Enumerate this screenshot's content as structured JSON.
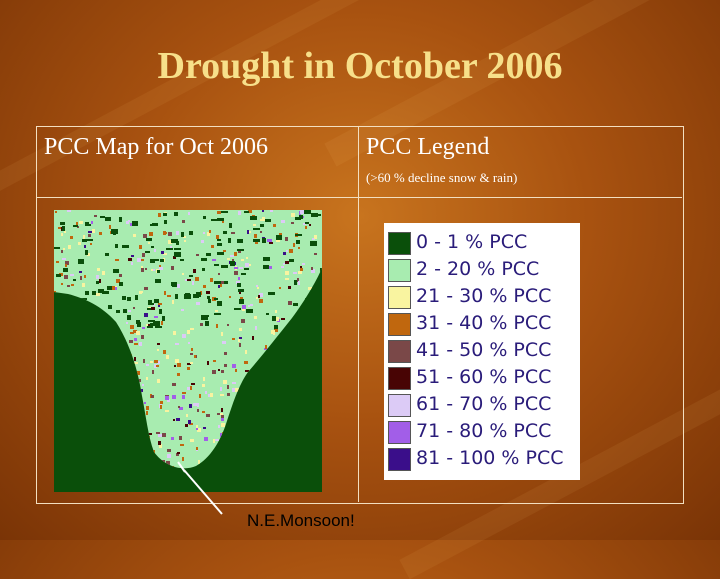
{
  "title": "Drought in October 2006",
  "map_header": "PCC Map for Oct 2006",
  "legend_header": "PCC Legend",
  "legend_subtitle": "(>60 % decline snow & rain)",
  "legend": [
    {
      "label": "0 - 1 % PCC",
      "color": "#0a4f0a"
    },
    {
      "label": "2 - 20 % PCC",
      "color": "#a8ecb0"
    },
    {
      "label": "21 - 30 % PCC",
      "color": "#f9f4a0"
    },
    {
      "label": "31 - 40 % PCC",
      "color": "#c0670e"
    },
    {
      "label": "41 - 50 % PCC",
      "color": "#7a4848"
    },
    {
      "label": "51 - 60 % PCC",
      "color": "#480404"
    },
    {
      "label": "61 - 70 % PCC",
      "color": "#dccbf6"
    },
    {
      "label": "71 - 80 % PCC",
      "color": "#a25ee8"
    },
    {
      "label": "81 - 100 % PCC",
      "color": "#3a0e8a"
    }
  ],
  "annotation": "N.E.Monsoon!"
}
